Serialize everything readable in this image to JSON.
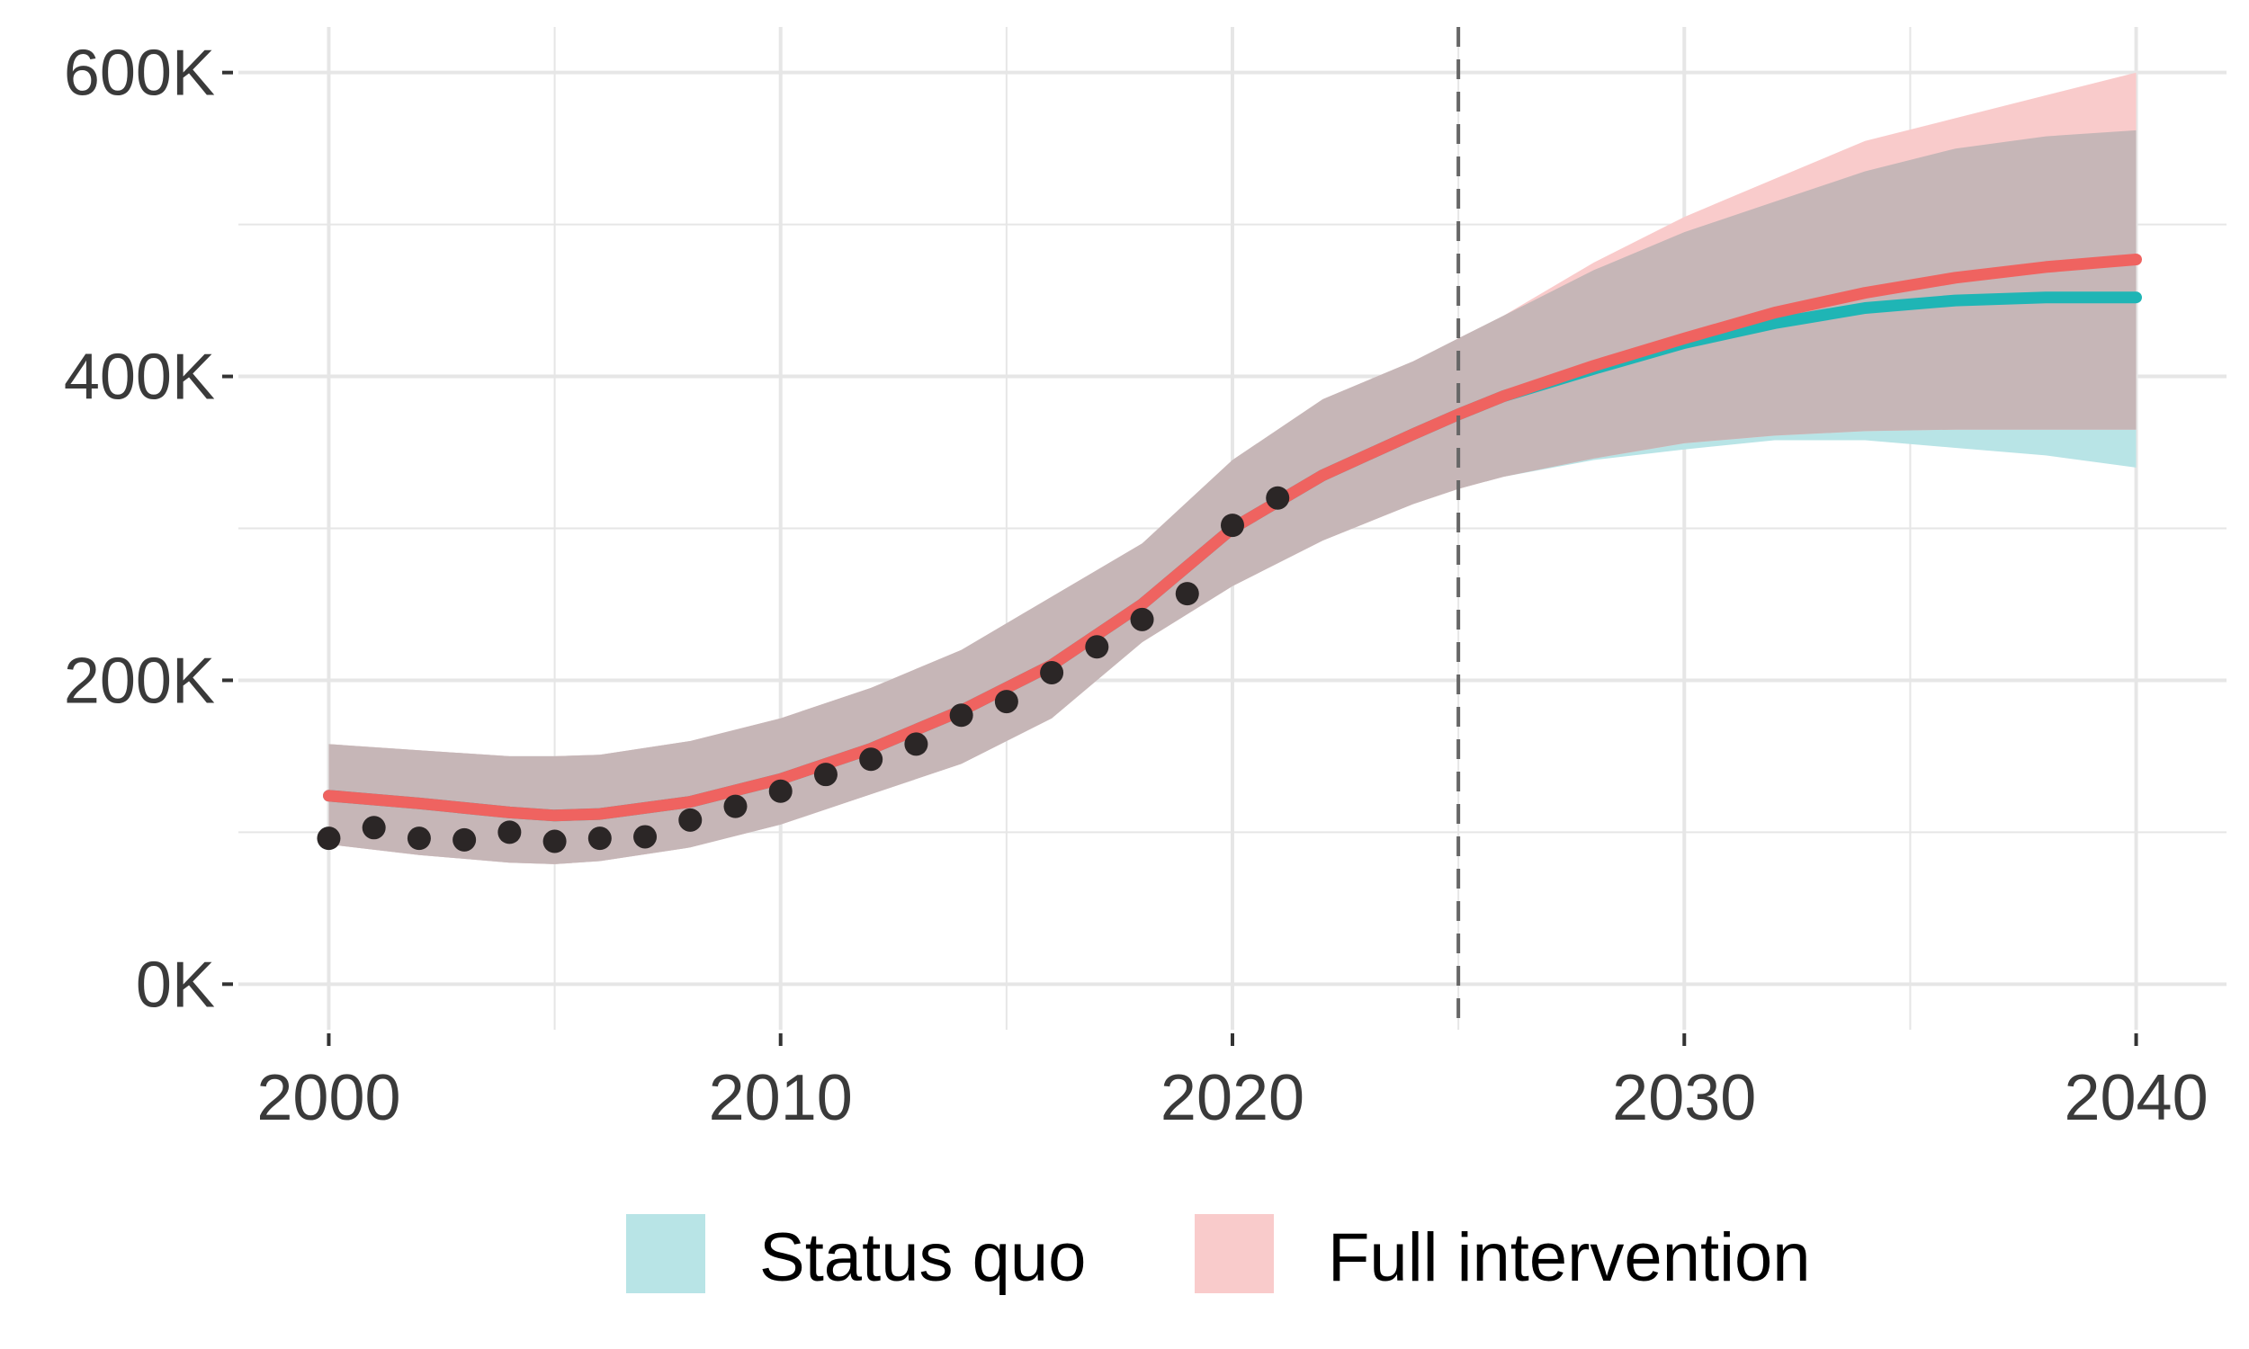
{
  "chart_data": {
    "type": "line",
    "title": "",
    "xlabel": "",
    "ylabel": "",
    "xlim": [
      1998,
      2042
    ],
    "ylim": [
      -30000,
      630000
    ],
    "x_ticks": [
      2000,
      2010,
      2020,
      2030,
      2040
    ],
    "x_tick_labels": [
      "2000",
      "2010",
      "2020",
      "2030",
      "2040"
    ],
    "y_ticks": [
      0,
      200000,
      400000,
      600000
    ],
    "y_tick_labels": [
      "0K",
      "200K",
      "400K",
      "600K"
    ],
    "grid": true,
    "vertical_reference_line": 2025,
    "legend_position": "bottom",
    "colors": {
      "status_quo": "#1fb5b5",
      "full_intervention": "#ef6360",
      "status_quo_band": "#b8e4e6",
      "full_intervention_band": "#f9cbcb",
      "overlap_band": "#c6b6b7",
      "observed": "#2b2626",
      "reference_line": "#666666",
      "grid": "#e6e6e6"
    },
    "series": [
      {
        "name": "Status quo",
        "type": "line",
        "x": [
          2000,
          2002,
          2004,
          2005,
          2006,
          2008,
          2010,
          2012,
          2014,
          2016,
          2018,
          2020,
          2022,
          2024,
          2025,
          2026,
          2028,
          2030,
          2032,
          2034,
          2036,
          2038,
          2040
        ],
        "y": [
          124000,
          119000,
          113000,
          111000,
          112000,
          120000,
          135000,
          155000,
          180000,
          210000,
          250000,
          300000,
          335000,
          362000,
          375000,
          387000,
          405000,
          422000,
          435000,
          445000,
          450000,
          452000,
          452000
        ],
        "lower": [
          92000,
          85000,
          80000,
          79000,
          81000,
          90000,
          105000,
          125000,
          145000,
          175000,
          225000,
          262000,
          292000,
          316000,
          326000,
          334000,
          345000,
          352000,
          358000,
          358000,
          353000,
          348000,
          340000
        ],
        "upper": [
          158000,
          154000,
          150000,
          150000,
          151000,
          160000,
          175000,
          195000,
          220000,
          255000,
          290000,
          345000,
          385000,
          410000,
          425000,
          440000,
          470000,
          495000,
          515000,
          535000,
          550000,
          558000,
          562000
        ]
      },
      {
        "name": "Full intervention",
        "type": "line",
        "x": [
          2000,
          2002,
          2004,
          2005,
          2006,
          2008,
          2010,
          2012,
          2014,
          2016,
          2018,
          2020,
          2022,
          2024,
          2025,
          2026,
          2028,
          2030,
          2032,
          2034,
          2036,
          2038,
          2040
        ],
        "y": [
          124000,
          119000,
          113000,
          111000,
          112000,
          120000,
          135000,
          155000,
          180000,
          210000,
          250000,
          300000,
          335000,
          362000,
          375000,
          387000,
          407000,
          425000,
          442000,
          455000,
          465000,
          472000,
          477000
        ],
        "lower": [
          92000,
          85000,
          80000,
          79000,
          81000,
          90000,
          105000,
          125000,
          145000,
          175000,
          225000,
          262000,
          292000,
          316000,
          326000,
          334000,
          346000,
          356000,
          361000,
          364000,
          365000,
          365000,
          365000
        ],
        "upper": [
          158000,
          154000,
          150000,
          150000,
          151000,
          160000,
          175000,
          195000,
          220000,
          255000,
          290000,
          345000,
          385000,
          410000,
          425000,
          440000,
          475000,
          505000,
          530000,
          555000,
          570000,
          585000,
          600000
        ]
      },
      {
        "name": "Observed",
        "type": "scatter",
        "x": [
          2000,
          2001,
          2002,
          2003,
          2004,
          2005,
          2006,
          2007,
          2008,
          2009,
          2010,
          2011,
          2012,
          2013,
          2014,
          2015,
          2016,
          2017,
          2018,
          2019,
          2020,
          2021
        ],
        "y": [
          96000,
          103000,
          96000,
          95000,
          100000,
          94000,
          96000,
          97000,
          108000,
          117000,
          127000,
          138000,
          148000,
          158000,
          177000,
          186000,
          205000,
          222000,
          240000,
          257000,
          302000,
          320000
        ]
      }
    ],
    "legend": [
      {
        "label": "Status quo",
        "color": "#b8e4e6"
      },
      {
        "label": "Full intervention",
        "color": "#f9cbcb"
      }
    ]
  }
}
